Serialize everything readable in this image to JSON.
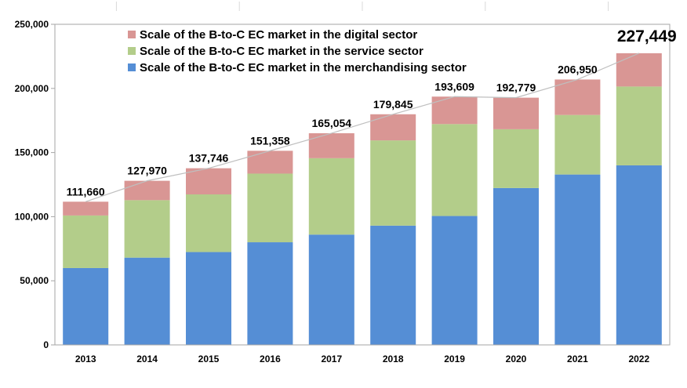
{
  "chart_data": {
    "type": "bar",
    "stacked": true,
    "categories": [
      "2013",
      "2014",
      "2015",
      "2016",
      "2017",
      "2018",
      "2019",
      "2020",
      "2021",
      "2022"
    ],
    "series": [
      {
        "name": "Scale of the B-to-C EC market in the merchandising sector",
        "color": "#558ed5",
        "values": [
          59931,
          68043,
          72398,
          80043,
          86008,
          92992,
          100515,
          122333,
          132865,
          139997
        ]
      },
      {
        "name": "Scale of the B-to-C EC market in the service sector",
        "color": "#b3cd8a",
        "values": [
          40980,
          44816,
          44961,
          53532,
          59568,
          66471,
          71672,
          45832,
          46424,
          61477
        ]
      },
      {
        "name": "Scale of the B-to-C EC market in the digital sector",
        "color": "#d99694",
        "values": [
          10749,
          15111,
          20387,
          17783,
          19478,
          20382,
          21422,
          24614,
          27661,
          25975
        ]
      }
    ],
    "totals": [
      111660,
      127970,
      137746,
      151358,
      165054,
      179845,
      193609,
      192779,
      206950,
      227449
    ],
    "total_labels": [
      "111,660",
      "127,970",
      "137,746",
      "151,358",
      "165,054",
      "179,845",
      "193,609",
      "192,779",
      "206,950",
      "227,449"
    ],
    "total_line_color": "#bfbfbf",
    "y_ticks": [
      "0",
      "50,000",
      "100,000",
      "150,000",
      "200,000",
      "250,000"
    ],
    "ylim": [
      0,
      250000
    ],
    "grid": false,
    "legend_position": "top-left",
    "legend_order": [
      2,
      1,
      0
    ]
  }
}
